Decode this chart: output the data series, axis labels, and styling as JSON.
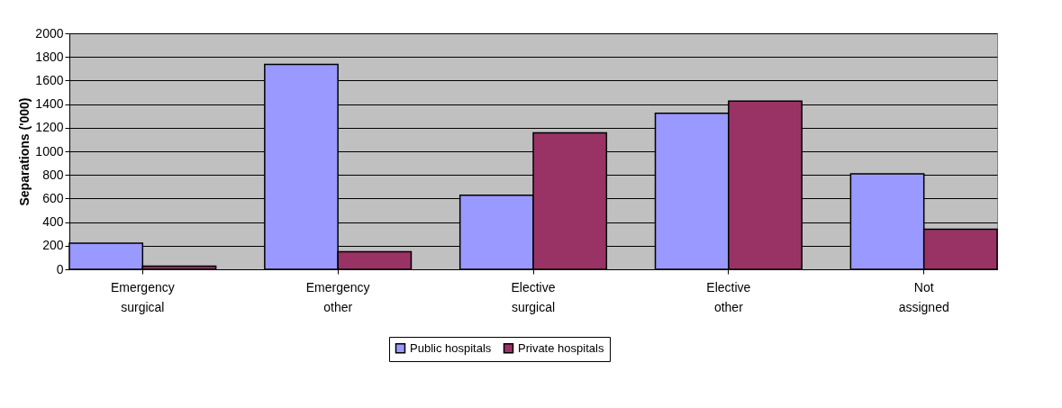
{
  "chart_data": {
    "type": "bar",
    "ylabel": "Separations ('000)",
    "categories": [
      "Emergency surgical",
      "Emergency other",
      "Elective surgical",
      "Elective other",
      "Not assigned"
    ],
    "series": [
      {
        "name": "Public hospitals",
        "color": "#9999ff",
        "values": [
          221,
          1737,
          628,
          1322,
          809
        ]
      },
      {
        "name": "Private hospitals",
        "color": "#993366",
        "values": [
          26,
          148,
          1157,
          1426,
          339
        ]
      }
    ],
    "ylim": [
      0,
      2000
    ],
    "yticks": [
      0,
      200,
      400,
      600,
      800,
      1000,
      1200,
      1400,
      1600,
      1800,
      2000
    ],
    "grid": "y",
    "legend": "bottom"
  }
}
